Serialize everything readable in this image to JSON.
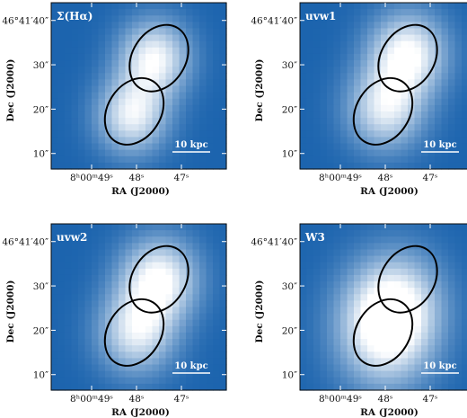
{
  "figure": {
    "panels": [
      {
        "band": "Σ(Hα)",
        "y_ticks": [
          "46°41′40″",
          "30″",
          "20″",
          "10″"
        ],
        "x_ticks": [
          "8ʰ00ᵐ49ˢ",
          "48ˢ",
          "47ˢ"
        ],
        "y_label": "Dec (J2000)",
        "x_label": "RA (J2000)",
        "scale_bar": "10 kpc",
        "sources": [
          {
            "ra_s": 47.6,
            "dec_s": 31.5,
            "peak": 0.95,
            "sigma_s": 0.55,
            "sigma_as": 6
          },
          {
            "ra_s": 48.1,
            "dec_s": 18.5,
            "peak": 0.9,
            "sigma_s": 0.55,
            "sigma_as": 6
          }
        ]
      },
      {
        "band": "uvw1",
        "y_ticks": [
          "46°41′40″",
          "30″",
          "20″",
          "10″"
        ],
        "x_ticks": [
          "8ʰ00ᵐ49ˢ",
          "48ˢ",
          "47ˢ"
        ],
        "y_label": "Dec (J2000)",
        "x_label": "RA (J2000)",
        "scale_bar": "10 kpc",
        "sources": [
          {
            "ra_s": 47.5,
            "dec_s": 32.5,
            "peak": 1.0,
            "sigma_s": 0.6,
            "sigma_as": 6.5
          },
          {
            "ra_s": 48.0,
            "dec_s": 20.0,
            "peak": 0.85,
            "sigma_s": 0.6,
            "sigma_as": 6.5
          }
        ]
      },
      {
        "band": "uvw2",
        "y_ticks": [
          "46°41′40″",
          "30″",
          "20″",
          "10″"
        ],
        "x_ticks": [
          "8ʰ00ᵐ49ˢ",
          "48ˢ",
          "47ˢ"
        ],
        "y_label": "Dec (J2000)",
        "x_label": "RA (J2000)",
        "scale_bar": "10 kpc",
        "sources": [
          {
            "ra_s": 47.5,
            "dec_s": 31.5,
            "peak": 1.0,
            "sigma_s": 0.6,
            "sigma_as": 6.5
          },
          {
            "ra_s": 48.0,
            "dec_s": 19.5,
            "peak": 0.85,
            "sigma_s": 0.6,
            "sigma_as": 6.5
          }
        ]
      },
      {
        "band": "W3",
        "y_ticks": [
          "46°41′40″",
          "30″",
          "20″",
          "10″"
        ],
        "x_ticks": [
          "8ʰ00ᵐ49ˢ",
          "48ˢ",
          "47ˢ"
        ],
        "y_label": "Dec (J2000)",
        "x_label": "RA (J2000)",
        "scale_bar": "10 kpc",
        "sources": [
          {
            "ra_s": 48.0,
            "dec_s": 20.0,
            "peak": 1.0,
            "sigma_s": 0.75,
            "sigma_as": 9
          },
          {
            "ra_s": 47.7,
            "dec_s": 27.0,
            "peak": 0.55,
            "sigma_s": 0.7,
            "sigma_as": 8
          }
        ]
      }
    ],
    "apertures": [
      {
        "ra_s": 47.5,
        "dec_s": 31.5,
        "semi_major_as": 8.0,
        "semi_minor_as": 6.0
      },
      {
        "ra_s": 48.05,
        "dec_s": 19.5,
        "semi_major_as": 8.0,
        "semi_minor_as": 6.0
      }
    ],
    "colors": {
      "background": "#1c64ae",
      "peak": "#ffffff",
      "aperture": "#000000"
    }
  }
}
